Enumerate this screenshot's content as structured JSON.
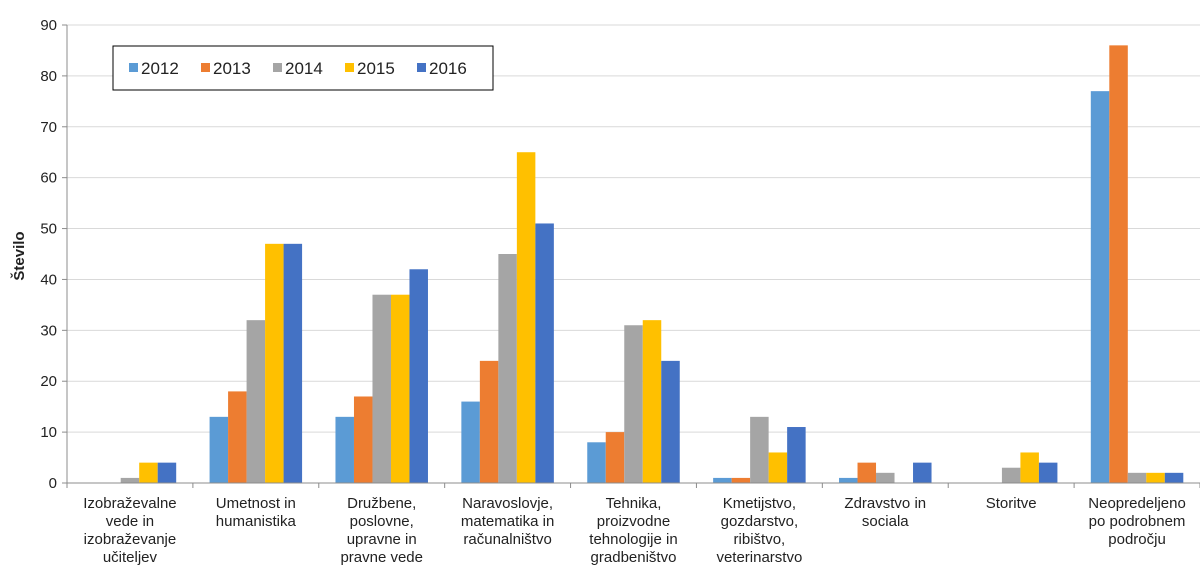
{
  "chart_data": {
    "type": "bar",
    "ylabel": "Število",
    "ylim": [
      0,
      90
    ],
    "yticks": [
      "0",
      "10",
      "20",
      "30",
      "40",
      "50",
      "60",
      "70",
      "80",
      "90"
    ],
    "grid": "horizontal",
    "legend_position": "top-left",
    "categories": [
      [
        "Izobraževalne",
        "vede in",
        "izobraževanje",
        "učiteljev"
      ],
      [
        "Umetnost in",
        "humanistika"
      ],
      [
        "Družbene,",
        "poslovne,",
        "upravne in",
        "pravne vede"
      ],
      [
        "Naravoslovje,",
        "matematika in",
        "računalništvo"
      ],
      [
        "Tehnika,",
        "proizvodne",
        "tehnologije in",
        "gradbeništvo"
      ],
      [
        "Kmetijstvo,",
        "gozdarstvo,",
        "ribištvo,",
        "veterinarstvo"
      ],
      [
        "Zdravstvo in",
        "sociala"
      ],
      [
        "Storitve"
      ],
      [
        "Neopredeljeno",
        "po podrobnem",
        "področju"
      ]
    ],
    "series": [
      {
        "name": "2012",
        "color": "#5B9BD5",
        "values": [
          0,
          13,
          13,
          16,
          8,
          1,
          1,
          0,
          77
        ]
      },
      {
        "name": "2013",
        "color": "#ED7D31",
        "values": [
          0,
          18,
          17,
          24,
          10,
          1,
          4,
          0,
          86
        ]
      },
      {
        "name": "2014",
        "color": "#A5A5A5",
        "values": [
          1,
          32,
          37,
          45,
          31,
          13,
          2,
          3,
          2
        ]
      },
      {
        "name": "2015",
        "color": "#FFC000",
        "values": [
          4,
          47,
          37,
          65,
          32,
          6,
          0,
          6,
          2
        ]
      },
      {
        "name": "2016",
        "color": "#4472C4",
        "values": [
          4,
          47,
          42,
          51,
          24,
          11,
          4,
          4,
          2
        ]
      }
    ]
  }
}
